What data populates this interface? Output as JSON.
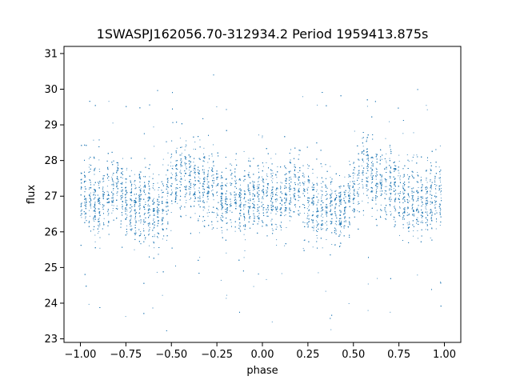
{
  "chart_data": {
    "type": "scatter",
    "title": "1SWASPJ162056.70-312934.2 Period 1959413.875s",
    "xlabel": "phase",
    "ylabel": "flux",
    "xlim": [
      -1.09,
      1.09
    ],
    "ylim": [
      22.9,
      31.2
    ],
    "x_ticks": [
      -1.0,
      -0.75,
      -0.5,
      -0.25,
      0.0,
      0.25,
      0.5,
      0.75,
      1.0
    ],
    "x_tick_labels": [
      "−1.00",
      "−0.75",
      "−0.50",
      "−0.25",
      "0.00",
      "0.25",
      "0.50",
      "0.75",
      "1.00"
    ],
    "y_ticks": [
      23,
      24,
      25,
      26,
      27,
      28,
      29,
      30,
      31
    ],
    "y_tick_labels": [
      "23",
      "24",
      "25",
      "26",
      "27",
      "28",
      "29",
      "30",
      "31"
    ],
    "grid": false,
    "legend": "none",
    "point_color": "#1f77b4",
    "series": [
      {
        "phase_flux_profile": [
          [
            -1.0,
            27.05
          ],
          [
            -0.95,
            26.9
          ],
          [
            -0.9,
            26.8
          ],
          [
            -0.85,
            27.1
          ],
          [
            -0.8,
            27.3
          ],
          [
            -0.75,
            26.9
          ],
          [
            -0.7,
            26.7
          ],
          [
            -0.65,
            26.8
          ],
          [
            -0.6,
            26.5
          ],
          [
            -0.55,
            26.6
          ],
          [
            -0.5,
            27.3
          ],
          [
            -0.45,
            27.7
          ],
          [
            -0.4,
            27.5
          ],
          [
            -0.35,
            27.3
          ],
          [
            -0.3,
            27.2
          ],
          [
            -0.25,
            27.1
          ],
          [
            -0.2,
            26.9
          ],
          [
            -0.15,
            27.0
          ],
          [
            -0.1,
            26.9
          ],
          [
            -0.05,
            27.0
          ],
          [
            0.0,
            27.05
          ],
          [
            0.05,
            26.9
          ],
          [
            0.1,
            26.8
          ],
          [
            0.15,
            27.1
          ],
          [
            0.2,
            27.3
          ],
          [
            0.25,
            26.9
          ],
          [
            0.3,
            26.7
          ],
          [
            0.35,
            26.8
          ],
          [
            0.4,
            26.5
          ],
          [
            0.45,
            26.6
          ],
          [
            0.5,
            27.3
          ],
          [
            0.55,
            27.7
          ],
          [
            0.6,
            27.5
          ],
          [
            0.65,
            27.3
          ],
          [
            0.7,
            27.2
          ],
          [
            0.75,
            27.1
          ],
          [
            0.8,
            26.9
          ],
          [
            0.85,
            27.0
          ],
          [
            0.9,
            26.9
          ],
          [
            0.95,
            27.0
          ],
          [
            1.0,
            27.05
          ]
        ],
        "scatter_spread": 0.5,
        "approx_points": 9000
      }
    ]
  }
}
